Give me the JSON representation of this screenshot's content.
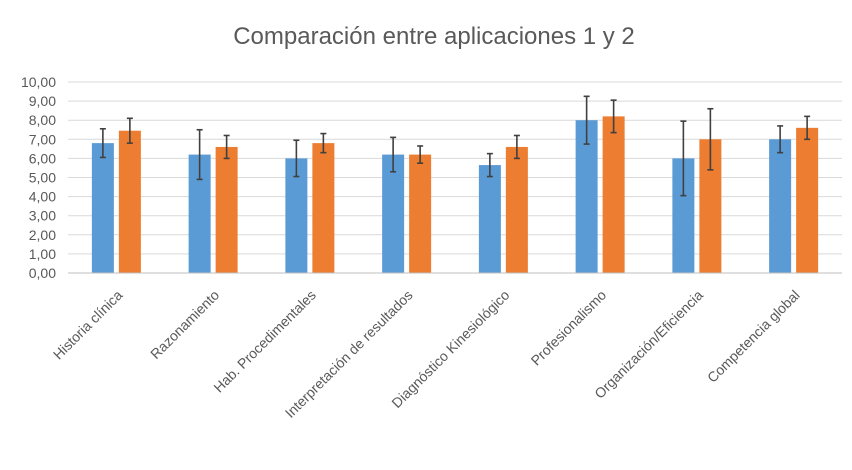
{
  "chart_data": {
    "type": "bar",
    "title": "Comparación entre aplicaciones 1 y 2",
    "xlabel": "",
    "ylabel": "",
    "ylim": [
      0,
      10
    ],
    "yticks": [
      "0,00",
      "1,00",
      "2,00",
      "3,00",
      "4,00",
      "5,00",
      "6,00",
      "7,00",
      "8,00",
      "9,00",
      "10,00"
    ],
    "grid": true,
    "legend": "none",
    "categories": [
      "Historia clínica",
      "Razonamiento",
      "Hab. Procedimentales",
      "Interpretación de resultados",
      "Diagnóstico Kinesiológico",
      "Profesionalismo",
      "Organización/Eficiencia",
      "Competencia global"
    ],
    "series": [
      {
        "color": "#5b9bd5",
        "values": [
          6.8,
          6.2,
          6.0,
          6.2,
          5.65,
          8.0,
          6.0,
          7.0
        ],
        "error": [
          0.75,
          1.3,
          0.95,
          0.9,
          0.6,
          1.25,
          1.95,
          0.7
        ]
      },
      {
        "color": "#ed7d31",
        "values": [
          7.45,
          6.6,
          6.8,
          6.2,
          6.6,
          8.2,
          7.0,
          7.6
        ],
        "error": [
          0.65,
          0.6,
          0.5,
          0.45,
          0.6,
          0.85,
          1.6,
          0.6
        ]
      }
    ]
  }
}
